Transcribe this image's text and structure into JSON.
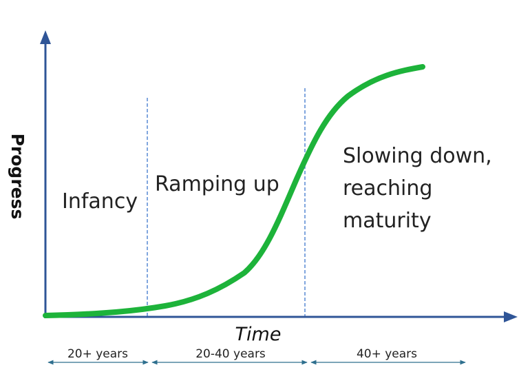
{
  "axes": {
    "y_label": "Progress",
    "x_label": "Time"
  },
  "phases": [
    {
      "label_lines": [
        "Infancy"
      ]
    },
    {
      "label_lines": [
        "Ramping up"
      ]
    },
    {
      "label_lines": [
        "Slowing down,",
        "reaching",
        "maturity"
      ]
    }
  ],
  "durations": [
    "20+ years",
    "20-40 years",
    "40+ years"
  ],
  "colors": {
    "axis": "#2f5597",
    "curve": "#1db33a",
    "divider": "#4a7fd0",
    "duration_arrow": "#2e6f8e"
  }
}
